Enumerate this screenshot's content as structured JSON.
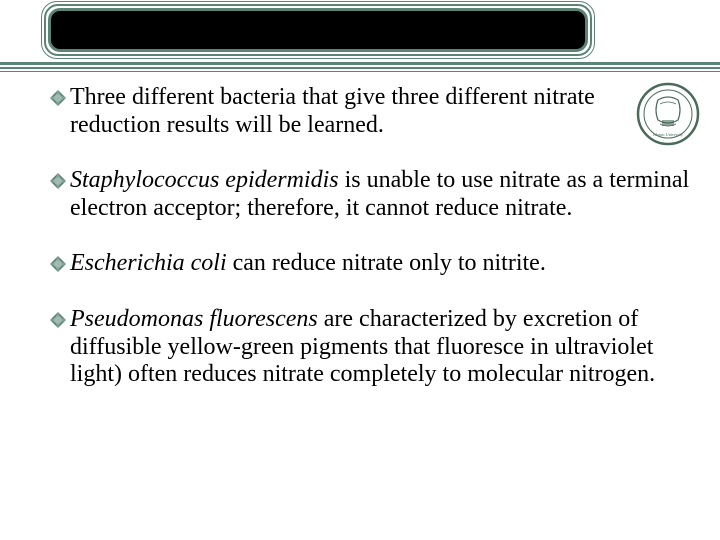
{
  "colors": {
    "accent": "#5a8576",
    "bullet": "#5a8576",
    "text": "#000000",
    "background": "#ffffff"
  },
  "bullets": [
    {
      "parts": [
        {
          "text": "Three different bacteria that give three different nitrate reduction results will be learned.",
          "italic": false
        }
      ]
    },
    {
      "parts": [
        {
          "text": "Staphylococcus epidermidis",
          "italic": true
        },
        {
          "text": " is unable to use nitrate as a terminal electron acceptor; therefore, it cannot reduce nitrate.",
          "italic": false
        }
      ]
    },
    {
      "parts": [
        {
          "text": "Escherichia coli",
          "italic": true
        },
        {
          "text": " can reduce nitrate only to nitrite.",
          "italic": false
        }
      ]
    },
    {
      "parts": [
        {
          "text": "Pseudomonas fluorescens",
          "italic": true
        },
        {
          "text": " are characterized by excretion of diffusible yellow-green pigments that fluoresce in ultraviolet light) often reduces nitrate completely to molecular nitrogen.",
          "italic": false
        }
      ]
    }
  ],
  "typography": {
    "body_fontsize": 24,
    "font_family": "Times New Roman"
  }
}
